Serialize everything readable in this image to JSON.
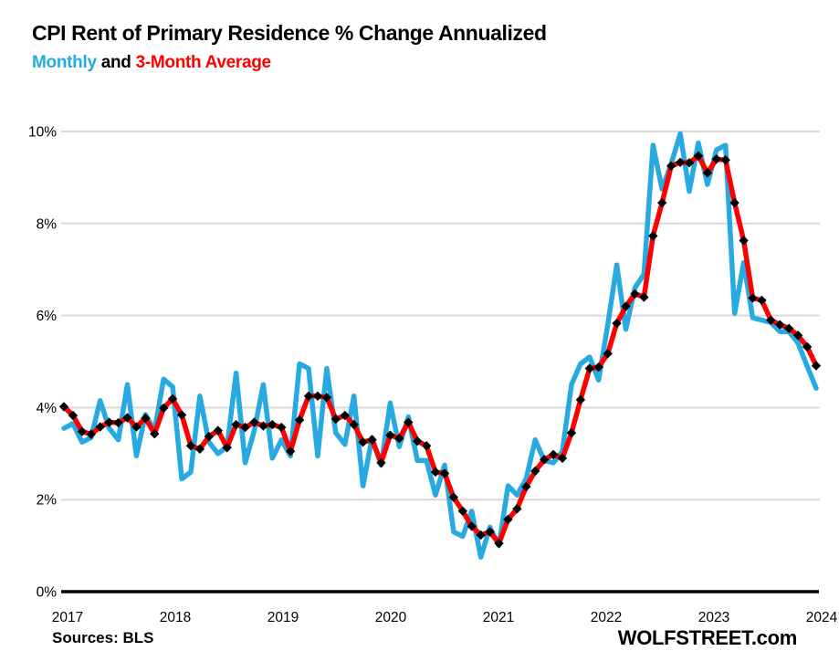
{
  "header": {
    "title": "CPI Rent of Primary Residence % Change Annualized",
    "subtitle_monthly": "Monthly",
    "subtitle_and": " and ",
    "subtitle_avg": "3-Month Average"
  },
  "footer": {
    "sources": "Sources: BLS",
    "brand": "WOLFSTREET.com"
  },
  "colors": {
    "monthly_line": "#27AAE1",
    "average_line": "#FF0000",
    "marker": "#000000",
    "grid": "#D9D9D9",
    "axis": "#000000",
    "tick_text": "#000000"
  },
  "chart_data": {
    "type": "line",
    "title": "CPI Rent of Primary Residence % Change Annualized",
    "xlabel": "",
    "ylabel": "",
    "ylim": [
      0,
      10
    ],
    "grid": "horizontal",
    "legend_position": "subtitle-inline",
    "x_tick_labels": [
      "2017",
      "2018",
      "2019",
      "2020",
      "2021",
      "2022",
      "2023",
      "2024"
    ],
    "y_tick_labels": [
      "0%",
      "2%",
      "4%",
      "6%",
      "8%",
      "10%"
    ],
    "y_tick_values": [
      0,
      2,
      4,
      6,
      8,
      10
    ],
    "months": [
      "2017-01",
      "2017-02",
      "2017-03",
      "2017-04",
      "2017-05",
      "2017-06",
      "2017-07",
      "2017-08",
      "2017-09",
      "2017-10",
      "2017-11",
      "2017-12",
      "2018-01",
      "2018-02",
      "2018-03",
      "2018-04",
      "2018-05",
      "2018-06",
      "2018-07",
      "2018-08",
      "2018-09",
      "2018-10",
      "2018-11",
      "2018-12",
      "2019-01",
      "2019-02",
      "2019-03",
      "2019-04",
      "2019-05",
      "2019-06",
      "2019-07",
      "2019-08",
      "2019-09",
      "2019-10",
      "2019-11",
      "2019-12",
      "2020-01",
      "2020-02",
      "2020-03",
      "2020-04",
      "2020-05",
      "2020-06",
      "2020-07",
      "2020-08",
      "2020-09",
      "2020-10",
      "2020-11",
      "2020-12",
      "2021-01",
      "2021-02",
      "2021-03",
      "2021-04",
      "2021-05",
      "2021-06",
      "2021-07",
      "2021-08",
      "2021-09",
      "2021-10",
      "2021-11",
      "2021-12",
      "2022-01",
      "2022-02",
      "2022-03",
      "2022-04",
      "2022-05",
      "2022-06",
      "2022-07",
      "2022-08",
      "2022-09",
      "2022-10",
      "2022-11",
      "2022-12",
      "2023-01",
      "2023-02",
      "2023-03",
      "2023-04",
      "2023-05",
      "2023-06",
      "2023-07",
      "2023-08",
      "2023-09",
      "2023-10",
      "2023-11",
      "2023-12"
    ],
    "series": [
      {
        "name": "Monthly",
        "color": "#27AAE1",
        "marker": "none",
        "values": [
          3.55,
          3.65,
          3.25,
          3.35,
          4.15,
          3.55,
          3.3,
          4.5,
          2.95,
          3.85,
          3.5,
          4.62,
          4.45,
          2.45,
          2.6,
          4.25,
          3.25,
          3.0,
          3.15,
          4.75,
          2.8,
          3.5,
          4.5,
          2.9,
          3.3,
          2.95,
          4.95,
          4.85,
          2.95,
          4.85,
          3.45,
          3.2,
          4.25,
          2.3,
          3.35,
          2.75,
          4.1,
          3.15,
          3.8,
          2.85,
          2.85,
          2.1,
          2.75,
          1.3,
          1.2,
          1.75,
          0.75,
          1.4,
          1.0,
          2.3,
          2.1,
          2.45,
          3.3,
          2.85,
          2.8,
          3.05,
          4.5,
          4.95,
          5.1,
          4.6,
          5.8,
          7.1,
          5.7,
          6.6,
          6.9,
          9.7,
          8.75,
          9.3,
          9.95,
          8.7,
          9.75,
          8.85,
          9.6,
          9.7,
          6.05,
          7.15,
          5.95,
          5.9,
          5.85,
          5.65,
          5.65,
          5.4,
          4.9,
          4.42
        ]
      },
      {
        "name": "3-Month Average",
        "color": "#FF0000",
        "marker": "diamond",
        "values": [
          4.02,
          3.83,
          3.48,
          3.42,
          3.58,
          3.68,
          3.67,
          3.78,
          3.58,
          3.77,
          3.43,
          3.99,
          4.19,
          3.84,
          3.17,
          3.1,
          3.37,
          3.5,
          3.13,
          3.63,
          3.57,
          3.68,
          3.6,
          3.63,
          3.57,
          3.05,
          3.73,
          4.25,
          4.25,
          4.22,
          3.75,
          3.83,
          3.63,
          3.25,
          3.3,
          2.8,
          3.4,
          3.33,
          3.68,
          3.27,
          3.17,
          2.6,
          2.57,
          2.05,
          1.75,
          1.42,
          1.23,
          1.3,
          1.05,
          1.57,
          1.8,
          2.28,
          2.62,
          2.87,
          2.98,
          2.9,
          3.45,
          4.17,
          4.85,
          4.88,
          5.17,
          5.83,
          6.2,
          6.47,
          6.4,
          7.73,
          8.45,
          9.25,
          9.33,
          9.32,
          9.47,
          9.1,
          9.4,
          9.38,
          8.45,
          7.63,
          6.38,
          6.33,
          5.9,
          5.8,
          5.72,
          5.57,
          5.32,
          4.91
        ]
      }
    ]
  }
}
